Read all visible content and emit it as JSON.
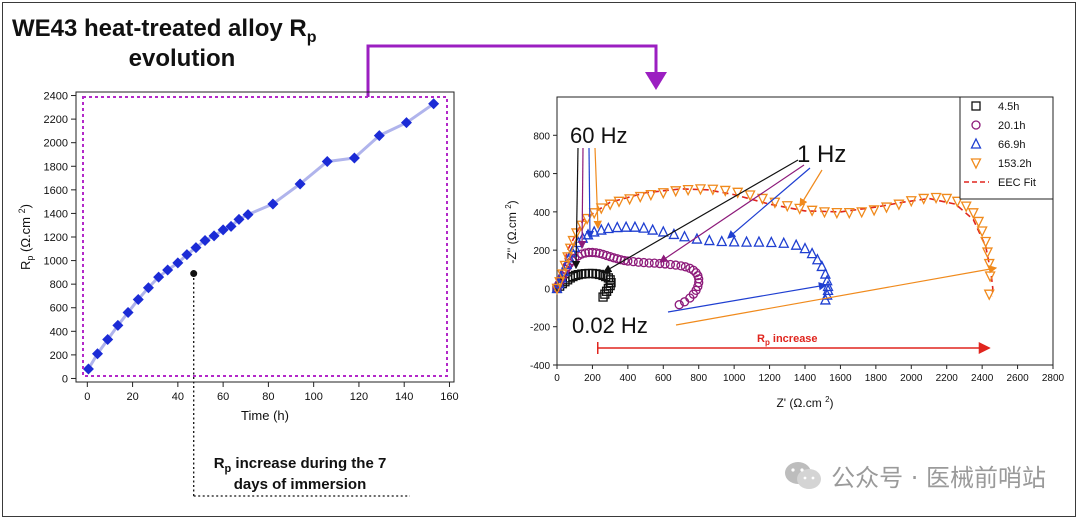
{
  "title": {
    "line1": "WE43 heat-treated alloy R",
    "sub": "p",
    "line2": "evolution"
  },
  "left_note": {
    "line1_prefix": "R",
    "line1_sub": "p",
    "line1_rest": " increase during the 7",
    "line2": "days of immersion"
  },
  "watermark": {
    "text": "公众号 · 医械前哨站",
    "icon": "wechat-icon"
  },
  "colors": {
    "accent": "#9b1fc1",
    "series_left": "#1b2bd6",
    "series_left_line": "#b0b4ec",
    "s1": "#111111",
    "s2": "#8d1a7a",
    "s3": "#1f3fd1",
    "s4": "#f08a1c",
    "fit": "#e0251e",
    "rp_arrow": "#e0251e"
  },
  "chart_data": [
    {
      "type": "line",
      "title": "",
      "xlabel": "Time (h)",
      "ylabel_main": "R",
      "ylabel_sub": "p",
      "ylabel_units": " (Ω.cm ",
      "ylabel_sup": "2",
      "ylabel_close": ")",
      "xlim": [
        -5,
        162
      ],
      "ylim": [
        -30,
        2430
      ],
      "xticks": [
        0,
        20,
        40,
        60,
        80,
        100,
        120,
        140,
        160
      ],
      "yticks": [
        0,
        200,
        400,
        600,
        800,
        1000,
        1200,
        1400,
        1600,
        1800,
        2000,
        2200,
        2400
      ],
      "series": [
        {
          "name": "Rp",
          "x": [
            0.5,
            4.5,
            9,
            13.5,
            18,
            22.5,
            27,
            31.5,
            35.5,
            40,
            44,
            48,
            52,
            56,
            60,
            63.5,
            67,
            71,
            82,
            94,
            106,
            118,
            129,
            141,
            153
          ],
          "y": [
            80,
            210,
            330,
            450,
            560,
            670,
            770,
            860,
            920,
            980,
            1050,
            1110,
            1170,
            1210,
            1260,
            1290,
            1350,
            1390,
            1480,
            1650,
            1840,
            1870,
            2060,
            2170,
            2330
          ]
        }
      ],
      "outlier": {
        "x": 47,
        "y": 890
      }
    },
    {
      "type": "scatter",
      "title": "",
      "xlabel_main": "Z' (Ω.cm ",
      "xlabel_sup": "2",
      "xlabel_close": ")",
      "ylabel_main": "-Z'' (Ω.cm ",
      "ylabel_sup": "2",
      "ylabel_close": ")",
      "xlim": [
        0,
        2800
      ],
      "ylim": [
        -400,
        1000
      ],
      "xticks": [
        0,
        200,
        400,
        600,
        800,
        1000,
        1200,
        1400,
        1600,
        1800,
        2000,
        2200,
        2400,
        2600,
        2800
      ],
      "yticks": [
        -400,
        -200,
        0,
        200,
        400,
        600,
        800
      ],
      "legend_position": "top-right",
      "legend": [
        "4.5h",
        "20.1h",
        "66.9h",
        "153.2h",
        "EEC Fit"
      ],
      "annotations": {
        "hz60": "60 Hz",
        "hz1": "1 Hz",
        "hz002": "0.02 Hz",
        "rp_increase_main": "R",
        "rp_increase_sub": "p",
        "rp_increase_rest": " increase"
      },
      "series": [
        {
          "name": "4.5h",
          "marker": "square",
          "x": [
            0,
            15,
            30,
            45,
            60,
            75,
            90,
            105,
            120,
            140,
            160,
            180,
            200,
            220,
            240,
            260,
            275,
            290,
            300,
            305,
            300,
            290,
            280,
            270,
            260
          ],
          "y": [
            0,
            12,
            25,
            35,
            45,
            55,
            62,
            68,
            72,
            75,
            77,
            78,
            78,
            76,
            73,
            68,
            62,
            55,
            45,
            30,
            15,
            0,
            -15,
            -30,
            -45
          ]
        },
        {
          "name": "20.1h",
          "marker": "circle",
          "x": [
            0,
            10,
            20,
            30,
            40,
            50,
            60,
            70,
            85,
            100,
            120,
            140,
            160,
            180,
            200,
            220,
            240,
            260,
            280,
            300,
            320,
            340,
            360,
            380,
            400,
            430,
            460,
            490,
            520,
            550,
            580,
            610,
            640,
            670,
            700,
            725,
            750,
            770,
            785,
            795,
            800,
            800,
            795,
            785,
            770,
            750,
            720,
            690
          ],
          "y": [
            0,
            20,
            40,
            60,
            80,
            100,
            115,
            130,
            145,
            158,
            170,
            180,
            185,
            188,
            188,
            186,
            183,
            178,
            172,
            166,
            160,
            155,
            150,
            146,
            143,
            140,
            137,
            135,
            133,
            132,
            130,
            128,
            125,
            122,
            118,
            113,
            105,
            95,
            82,
            67,
            50,
            30,
            10,
            -10,
            -30,
            -50,
            -70,
            -85
          ]
        },
        {
          "name": "66.9h",
          "marker": "triangle-up",
          "x": [
            0,
            12,
            25,
            40,
            55,
            70,
            85,
            100,
            120,
            145,
            175,
            210,
            250,
            290,
            340,
            390,
            440,
            490,
            540,
            600,
            660,
            720,
            790,
            860,
            930,
            1000,
            1070,
            1140,
            1210,
            1280,
            1350,
            1400,
            1440,
            1470,
            1495,
            1515,
            1525,
            1530,
            1530,
            1525,
            1515
          ],
          "y": [
            0,
            25,
            55,
            90,
            125,
            160,
            190,
            215,
            240,
            262,
            280,
            295,
            305,
            313,
            318,
            320,
            320,
            315,
            305,
            295,
            282,
            270,
            258,
            250,
            245,
            243,
            242,
            242,
            240,
            236,
            226,
            208,
            182,
            150,
            115,
            75,
            40,
            10,
            -10,
            -35,
            -60
          ]
        },
        {
          "name": "153.2h",
          "marker": "triangle-down",
          "x": [
            0,
            15,
            30,
            45,
            60,
            75,
            90,
            110,
            140,
            170,
            210,
            250,
            300,
            350,
            410,
            470,
            530,
            600,
            670,
            740,
            810,
            880,
            950,
            1020,
            1090,
            1160,
            1230,
            1300,
            1370,
            1440,
            1510,
            1580,
            1650,
            1720,
            1790,
            1860,
            1930,
            2000,
            2070,
            2140,
            2200,
            2260,
            2310,
            2350,
            2380,
            2400,
            2420,
            2430,
            2440,
            2445,
            2440
          ],
          "y": [
            0,
            35,
            75,
            120,
            165,
            210,
            250,
            290,
            330,
            365,
            395,
            420,
            440,
            455,
            468,
            480,
            490,
            500,
            510,
            516,
            520,
            518,
            512,
            502,
            488,
            470,
            450,
            432,
            418,
            408,
            400,
            396,
            396,
            400,
            410,
            425,
            440,
            458,
            470,
            475,
            470,
            455,
            430,
            395,
            350,
            300,
            245,
            190,
            130,
            65,
            -30
          ]
        }
      ],
      "fit": {
        "x": [
          0,
          60,
          150,
          300,
          500,
          700,
          850,
          1000,
          1200,
          1400,
          1600,
          1800,
          1950,
          2100,
          2250,
          2350,
          2420,
          2450,
          2460,
          2455
        ],
        "y": [
          0,
          200,
          360,
          450,
          500,
          520,
          515,
          490,
          440,
          405,
          400,
          425,
          450,
          470,
          440,
          360,
          220,
          80,
          0,
          -40
        ]
      }
    }
  ]
}
